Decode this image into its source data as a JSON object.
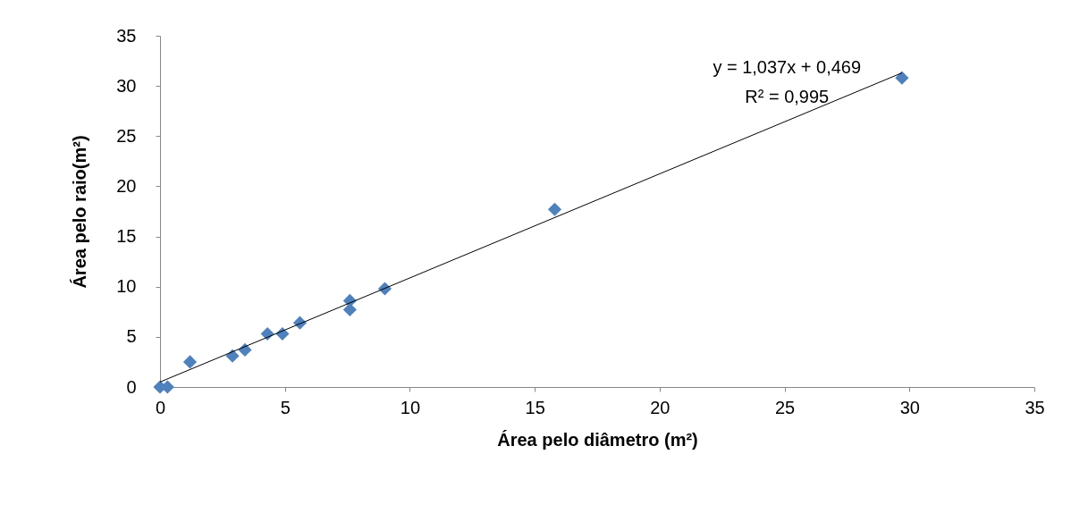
{
  "chart_data": {
    "type": "scatter",
    "xlabel": "Área pelo diâmetro (m²)",
    "ylabel": "Área pelo raio(m²)",
    "annotations": [
      "y = 1,037x + 0,469",
      "R² = 0,995"
    ],
    "xlim": [
      0,
      35
    ],
    "xticks": [
      0,
      5,
      10,
      15,
      20,
      25,
      30,
      35
    ],
    "ylim": [
      0,
      35
    ],
    "yticks": [
      0,
      5,
      10,
      15,
      20,
      25,
      30,
      35
    ],
    "grid": false,
    "series": [
      {
        "color": "#4f81bd",
        "marker": "diamond",
        "x": [
          0,
          0.3,
          1.2,
          2.9,
          3.4,
          4.3,
          4.9,
          5.6,
          7.6,
          7.6,
          9,
          15.8,
          29.7
        ],
        "values": [
          0,
          0,
          2.5,
          3.1,
          3.7,
          5.3,
          5.3,
          6.4,
          8.6,
          7.7,
          9.8,
          17.7,
          30.8
        ]
      },
      {
        "type": "line",
        "color": "#000000",
        "marker": "none",
        "x": [
          0,
          29.7
        ],
        "values": [
          0.5,
          31.3
        ]
      }
    ]
  }
}
